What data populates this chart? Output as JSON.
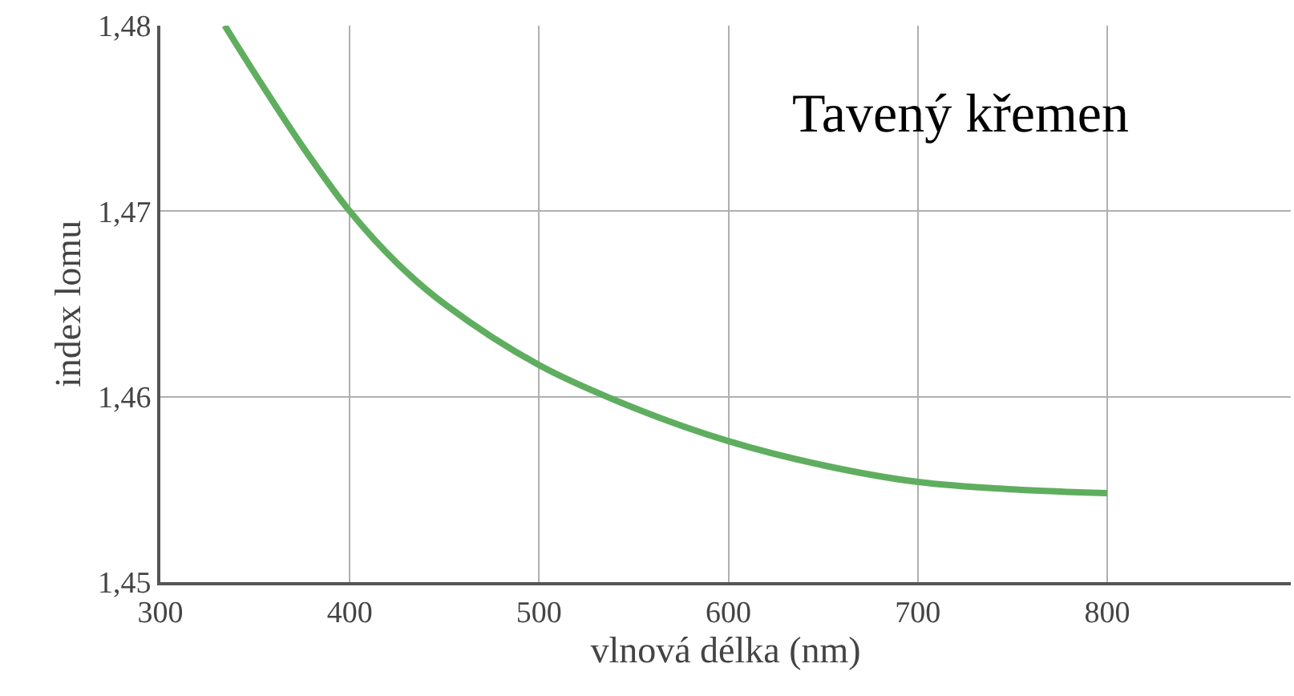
{
  "chart_data": {
    "type": "line",
    "xlabel": "vlnová délka (nm)",
    "ylabel": "index lomu",
    "annotations": [
      "Tavený křemen"
    ],
    "x": [
      334,
      350,
      375,
      400,
      425,
      450,
      500,
      550,
      600,
      650,
      700,
      750,
      800
    ],
    "series": [
      {
        "color": "#5fae5f",
        "values": [
          1.48,
          1.4774,
          1.4735,
          1.47,
          1.4672,
          1.465,
          1.4617,
          1.4594,
          1.4576,
          1.4563,
          1.4554,
          1.455,
          1.4548
        ]
      }
    ],
    "xlim": [
      300,
      897
    ],
    "ylim": [
      1.45,
      1.48
    ],
    "xticks": [
      300,
      400,
      500,
      600,
      700,
      800
    ],
    "yticks": [
      {
        "value": 1.45,
        "label": "1,45"
      },
      {
        "value": 1.46,
        "label": "1,46"
      },
      {
        "value": 1.47,
        "label": "1,47"
      },
      {
        "value": 1.48,
        "label": "1,48"
      }
    ],
    "grid": true,
    "marker": "none",
    "line_style": "solid"
  }
}
